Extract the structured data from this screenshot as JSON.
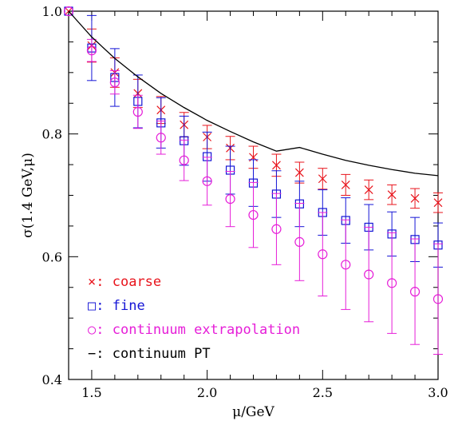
{
  "chart_data": {
    "type": "scatter",
    "title": "",
    "xlabel": "μ/GeV",
    "ylabel": "σ(1.4 GeV,μ)",
    "xlim": [
      1.4,
      3.0
    ],
    "ylim": [
      0.4,
      1.0
    ],
    "xticks": [
      1.5,
      2.0,
      2.5,
      3.0
    ],
    "xtick_labels": [
      "1.5",
      "2.0",
      "2.5",
      "3.0"
    ],
    "yticks": [
      0.4,
      0.6,
      0.8,
      1.0
    ],
    "ytick_labels": [
      "0.4",
      "0.6",
      "0.8",
      "1.0"
    ],
    "grid": false,
    "legend_position": "bottom-left",
    "series": [
      {
        "name": "coarse",
        "marker": "x",
        "color": "#e8141c",
        "points": [
          {
            "x": 1.4,
            "y": 1.0,
            "err": 0.0
          },
          {
            "x": 1.5,
            "y": 0.944,
            "err": 0.027
          },
          {
            "x": 1.6,
            "y": 0.9,
            "err": 0.024
          },
          {
            "x": 1.7,
            "y": 0.866,
            "err": 0.023
          },
          {
            "x": 1.8,
            "y": 0.839,
            "err": 0.022
          },
          {
            "x": 1.9,
            "y": 0.815,
            "err": 0.02
          },
          {
            "x": 2.0,
            "y": 0.795,
            "err": 0.019
          },
          {
            "x": 2.1,
            "y": 0.777,
            "err": 0.019
          },
          {
            "x": 2.2,
            "y": 0.762,
            "err": 0.018
          },
          {
            "x": 2.3,
            "y": 0.749,
            "err": 0.018
          },
          {
            "x": 2.4,
            "y": 0.737,
            "err": 0.017
          },
          {
            "x": 2.5,
            "y": 0.727,
            "err": 0.017
          },
          {
            "x": 2.6,
            "y": 0.717,
            "err": 0.017
          },
          {
            "x": 2.7,
            "y": 0.709,
            "err": 0.016
          },
          {
            "x": 2.8,
            "y": 0.701,
            "err": 0.016
          },
          {
            "x": 2.9,
            "y": 0.695,
            "err": 0.016
          },
          {
            "x": 3.0,
            "y": 0.688,
            "err": 0.016
          }
        ]
      },
      {
        "name": "fine",
        "marker": "square",
        "color": "#1515d6",
        "points": [
          {
            "x": 1.4,
            "y": 1.0,
            "err": 0.0
          },
          {
            "x": 1.5,
            "y": 0.94,
            "err": 0.053
          },
          {
            "x": 1.6,
            "y": 0.892,
            "err": 0.047
          },
          {
            "x": 1.7,
            "y": 0.853,
            "err": 0.043
          },
          {
            "x": 1.8,
            "y": 0.818,
            "err": 0.041
          },
          {
            "x": 1.9,
            "y": 0.789,
            "err": 0.04
          },
          {
            "x": 2.0,
            "y": 0.763,
            "err": 0.04
          },
          {
            "x": 2.1,
            "y": 0.741,
            "err": 0.039
          },
          {
            "x": 2.2,
            "y": 0.72,
            "err": 0.038
          },
          {
            "x": 2.3,
            "y": 0.702,
            "err": 0.038
          },
          {
            "x": 2.4,
            "y": 0.686,
            "err": 0.037
          },
          {
            "x": 2.5,
            "y": 0.672,
            "err": 0.037
          },
          {
            "x": 2.6,
            "y": 0.659,
            "err": 0.037
          },
          {
            "x": 2.7,
            "y": 0.648,
            "err": 0.037
          },
          {
            "x": 2.8,
            "y": 0.637,
            "err": 0.036
          },
          {
            "x": 2.9,
            "y": 0.628,
            "err": 0.036
          },
          {
            "x": 3.0,
            "y": 0.619,
            "err": 0.036
          }
        ]
      },
      {
        "name": "continuum extrapolation",
        "marker": "circle",
        "color": "#e61ed8",
        "points": [
          {
            "x": 1.4,
            "y": 1.0,
            "err": 0.0
          },
          {
            "x": 1.5,
            "y": 0.936,
            "err": 0.018
          },
          {
            "x": 1.6,
            "y": 0.884,
            "err": 0.019
          },
          {
            "x": 1.7,
            "y": 0.836,
            "err": 0.027
          },
          {
            "x": 1.8,
            "y": 0.794,
            "err": 0.027
          },
          {
            "x": 1.9,
            "y": 0.757,
            "err": 0.033
          },
          {
            "x": 2.0,
            "y": 0.723,
            "err": 0.039
          },
          {
            "x": 2.1,
            "y": 0.694,
            "err": 0.045
          },
          {
            "x": 2.2,
            "y": 0.668,
            "err": 0.053
          },
          {
            "x": 2.3,
            "y": 0.645,
            "err": 0.058
          },
          {
            "x": 2.4,
            "y": 0.624,
            "err": 0.063
          },
          {
            "x": 2.5,
            "y": 0.604,
            "err": 0.068
          },
          {
            "x": 2.6,
            "y": 0.587,
            "err": 0.073
          },
          {
            "x": 2.7,
            "y": 0.571,
            "err": 0.077
          },
          {
            "x": 2.8,
            "y": 0.557,
            "err": 0.082
          },
          {
            "x": 2.9,
            "y": 0.543,
            "err": 0.086
          },
          {
            "x": 3.0,
            "y": 0.531,
            "err": 0.09
          }
        ]
      },
      {
        "name": "continuum PT",
        "marker": "line",
        "color": "#000000",
        "points": [
          {
            "x": 1.4,
            "y": 1.0
          },
          {
            "x": 1.5,
            "y": 0.958
          },
          {
            "x": 1.6,
            "y": 0.923
          },
          {
            "x": 1.7,
            "y": 0.893
          },
          {
            "x": 1.8,
            "y": 0.866
          },
          {
            "x": 1.9,
            "y": 0.843
          },
          {
            "x": 2.0,
            "y": 0.822
          },
          {
            "x": 2.1,
            "y": 0.804
          },
          {
            "x": 2.2,
            "y": 0.787
          },
          {
            "x": 2.3,
            "y": 0.772
          },
          {
            "x": 2.4,
            "y": 0.778
          },
          {
            "x": 2.5,
            "y": 0.767
          },
          {
            "x": 2.6,
            "y": 0.757
          },
          {
            "x": 2.7,
            "y": 0.749
          },
          {
            "x": 2.8,
            "y": 0.742
          },
          {
            "x": 2.9,
            "y": 0.736
          },
          {
            "x": 3.0,
            "y": 0.732
          }
        ]
      }
    ],
    "legend": [
      {
        "symbol": "×",
        "text": "coarse",
        "color": "#e8141c"
      },
      {
        "symbol": "□",
        "text": "fine",
        "color": "#1515d6"
      },
      {
        "symbol": "○",
        "text": "continuum extrapolation",
        "color": "#e61ed8"
      },
      {
        "symbol": "−",
        "text": "continuum PT",
        "color": "#000000"
      }
    ]
  }
}
